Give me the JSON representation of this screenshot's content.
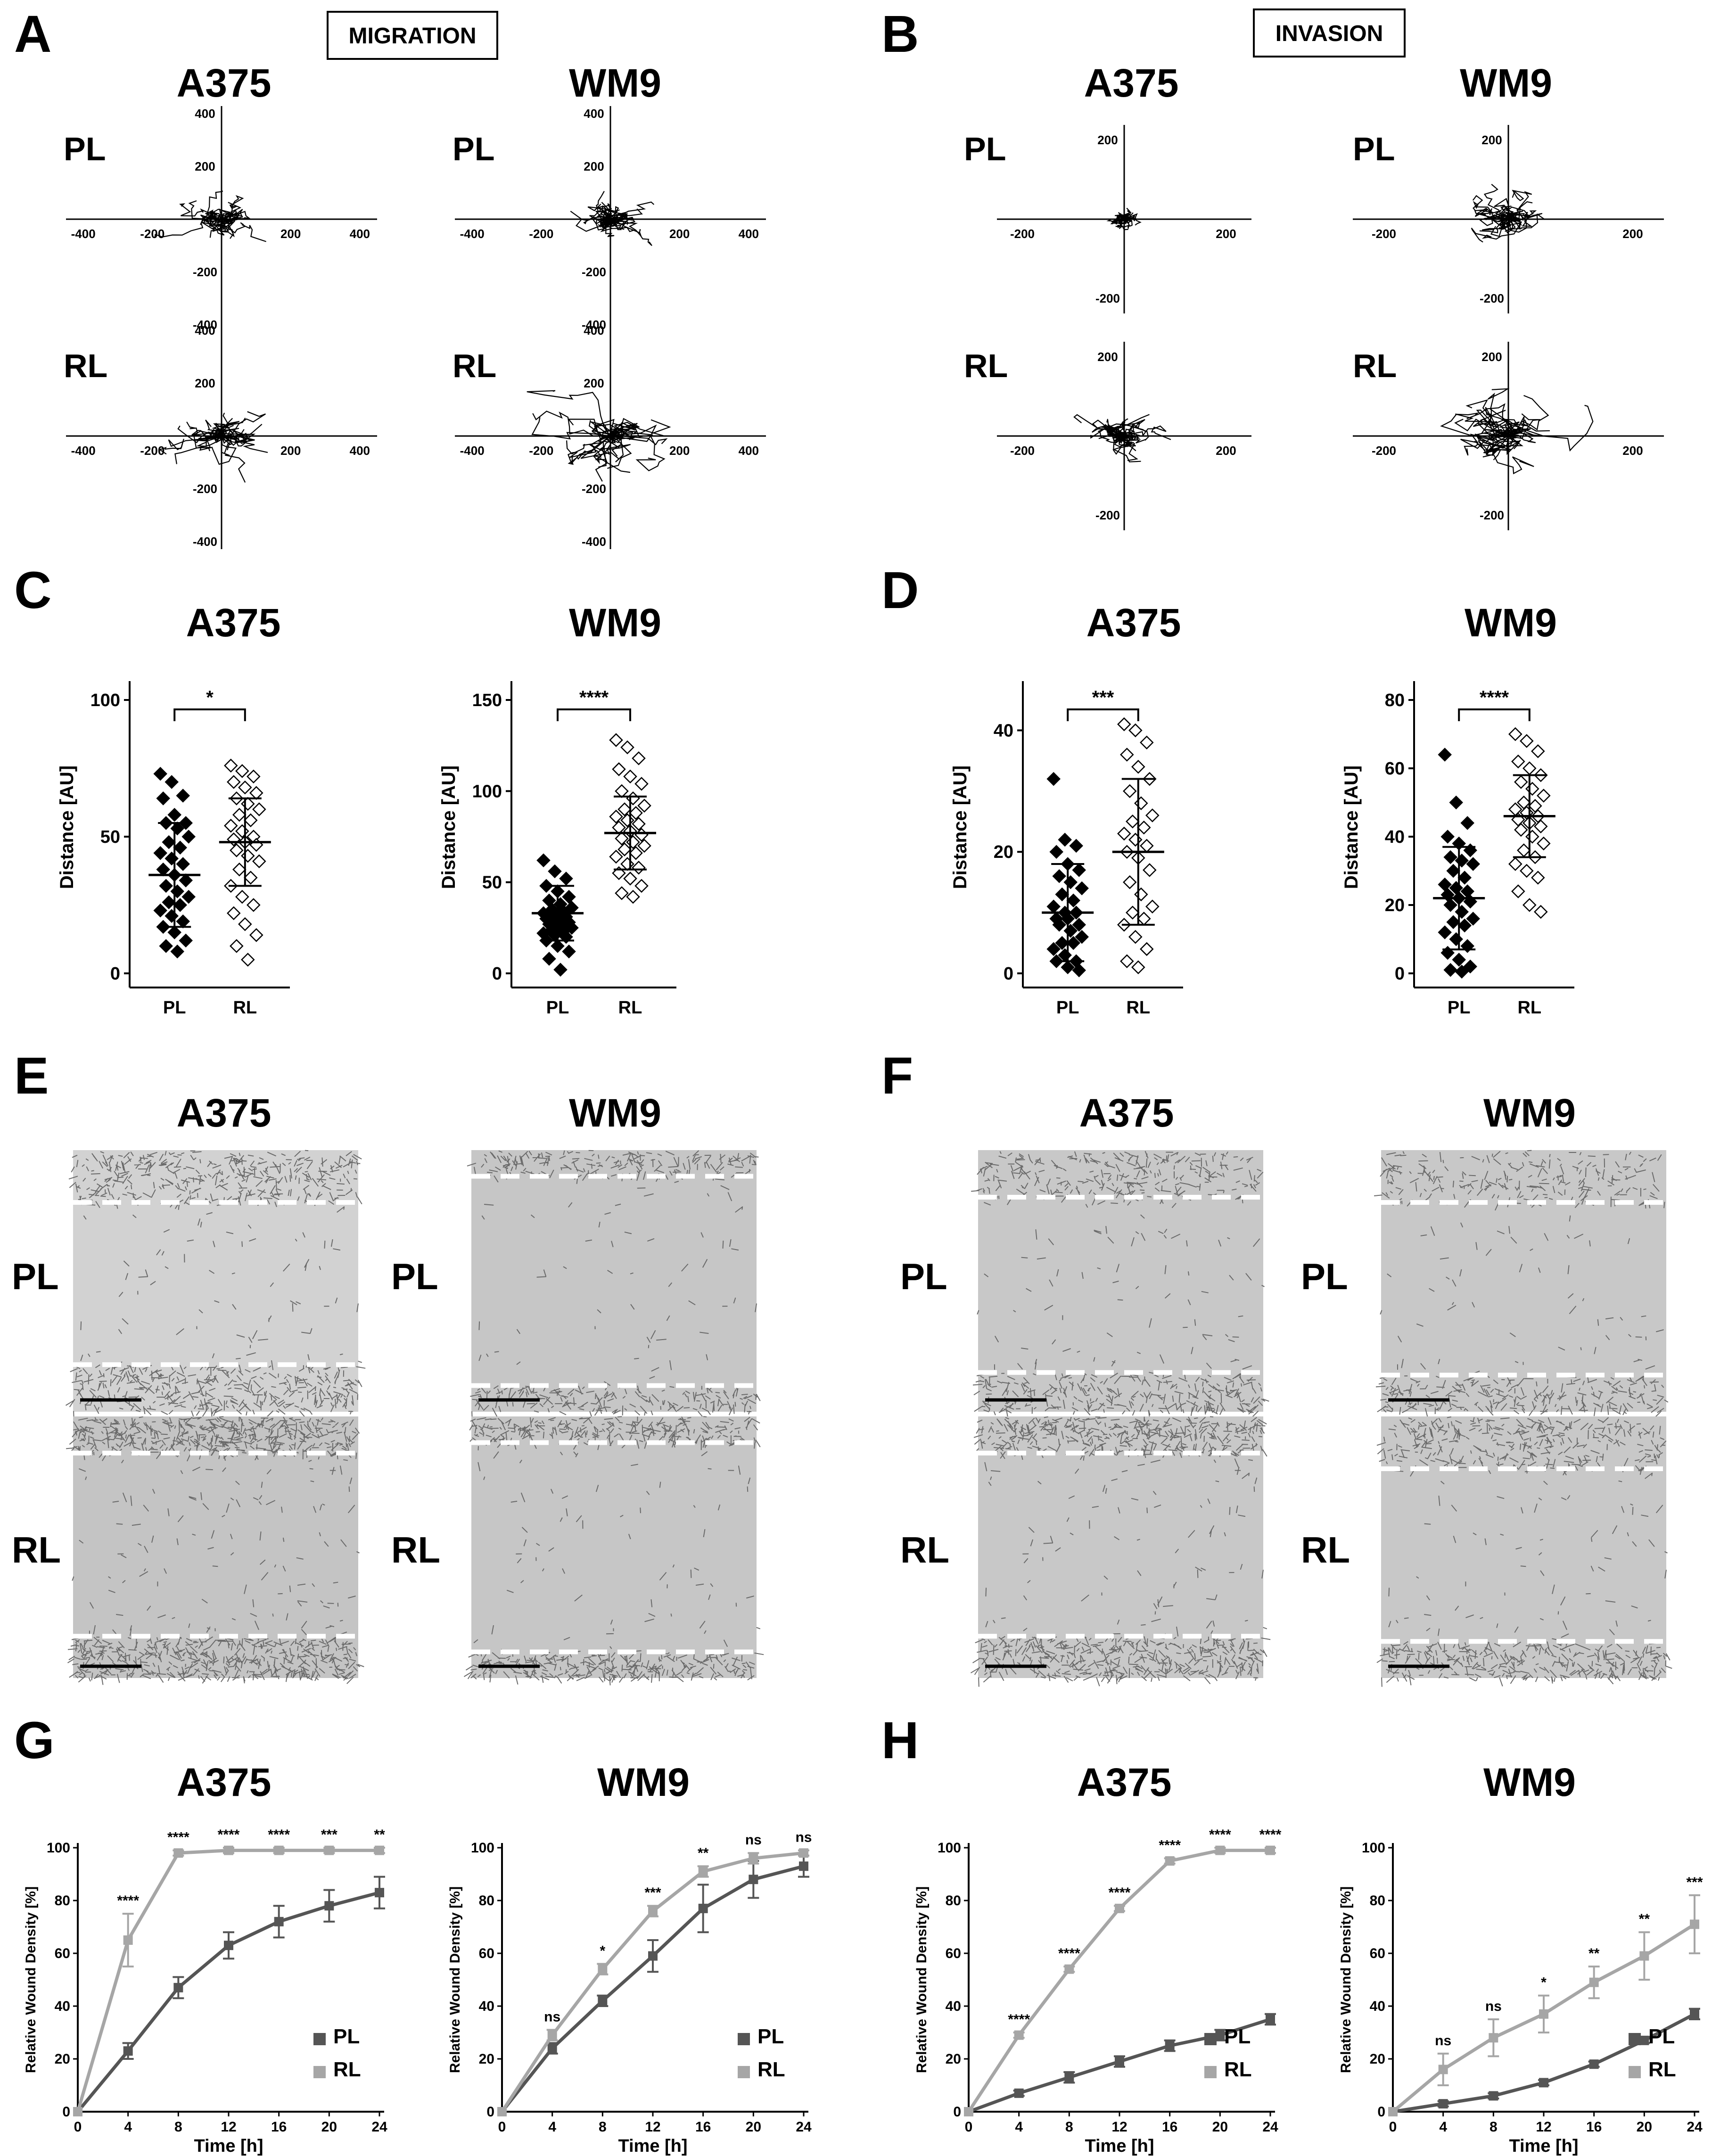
{
  "colors": {
    "pl": "#555555",
    "rl": "#a6a6a6",
    "micro_bg": "#c4c4c4",
    "dash": "#ffffff"
  },
  "figure": {
    "panels": {
      "A": {
        "letter": "A",
        "box_label": "MIGRATION"
      },
      "B": {
        "letter": "B",
        "box_label": "INVASION"
      },
      "C": {
        "letter": "C"
      },
      "D": {
        "letter": "D"
      },
      "E": {
        "letter": "E"
      },
      "F": {
        "letter": "F"
      },
      "G": {
        "letter": "G"
      },
      "H": {
        "letter": "H"
      }
    },
    "cells": {
      "a375": "A375",
      "wm9": "WM9"
    },
    "rows": {
      "pl": "PL",
      "rl": "RL"
    }
  },
  "chart_data": [
    {
      "panel": "A",
      "type": "trajectory",
      "title": "A375 / WM9 migration",
      "axis_ticks": [
        "-400",
        "-200",
        "200",
        "400"
      ],
      "y_ticks": [
        "400",
        "200",
        "-200",
        "-400"
      ],
      "range": [
        -450,
        450
      ]
    },
    {
      "panel": "B",
      "type": "trajectory",
      "title": "A375 / WM9 invasion",
      "axis_ticks": [
        "-200",
        "200"
      ],
      "y_ticks": [
        "200",
        "-200"
      ],
      "range": [
        -250,
        250
      ]
    },
    {
      "panel": "C",
      "cell": "A375",
      "type": "scatter",
      "ylabel": "Distance [AU]",
      "categories": [
        "PL",
        "RL"
      ],
      "ylim": [
        0,
        100
      ],
      "yticks": [
        "0",
        "50",
        "100"
      ],
      "mean": [
        36,
        48
      ],
      "sd": [
        19,
        16
      ],
      "significance": "*",
      "points": {
        "PL": [
          73,
          70,
          65,
          64,
          58,
          55,
          55,
          53,
          50,
          48,
          46,
          44,
          42,
          40,
          38,
          36,
          34,
          32,
          30,
          28,
          26,
          25,
          23,
          21,
          19,
          17,
          15,
          12,
          10,
          8
        ],
        "RL": [
          76,
          74,
          72,
          70,
          68,
          66,
          64,
          62,
          60,
          58,
          56,
          54,
          52,
          50,
          49,
          48,
          47,
          45,
          43,
          41,
          38,
          35,
          32,
          28,
          25,
          22,
          18,
          14,
          10,
          5
        ]
      }
    },
    {
      "panel": "C",
      "cell": "WM9",
      "type": "scatter",
      "ylabel": "Distance [AU]",
      "categories": [
        "PL",
        "RL"
      ],
      "ylim": [
        0,
        150
      ],
      "yticks": [
        "0",
        "50",
        "100",
        "150"
      ],
      "mean": [
        33,
        77
      ],
      "sd": [
        15,
        20
      ],
      "significance": "****",
      "points": {
        "PL": [
          62,
          56,
          52,
          48,
          45,
          42,
          40,
          38,
          36,
          35,
          34,
          33,
          32,
          31,
          30,
          29,
          28,
          27,
          26,
          25,
          24,
          23,
          22,
          21,
          20,
          18,
          15,
          12,
          8,
          2
        ],
        "RL": [
          128,
          124,
          118,
          112,
          108,
          104,
          100,
          96,
          92,
          90,
          88,
          86,
          84,
          82,
          80,
          78,
          76,
          74,
          72,
          70,
          68,
          66,
          64,
          60,
          58,
          55,
          52,
          48,
          44,
          42
        ]
      }
    },
    {
      "panel": "D",
      "cell": "A375",
      "type": "scatter",
      "ylabel": "Distance [AU]",
      "categories": [
        "PL",
        "RL"
      ],
      "ylim": [
        0,
        45
      ],
      "yticks": [
        "0",
        "20",
        "40"
      ],
      "mean": [
        10,
        20
      ],
      "sd": [
        8,
        12
      ],
      "significance": "***",
      "points": {
        "PL": [
          32,
          22,
          21,
          20,
          18,
          17,
          16,
          15,
          14,
          13,
          12,
          11,
          10,
          10,
          9,
          9,
          8,
          8,
          7,
          6,
          5,
          5,
          4,
          3,
          2,
          2,
          1,
          0.5
        ],
        "RL": [
          41,
          40,
          38,
          36,
          34,
          32,
          30,
          28,
          26,
          25,
          24,
          23,
          22,
          21,
          20,
          19,
          17,
          15,
          13,
          11,
          10,
          9,
          8,
          6,
          4,
          2,
          1
        ]
      }
    },
    {
      "panel": "D",
      "cell": "WM9",
      "type": "scatter",
      "ylabel": "Distance [AU]",
      "categories": [
        "PL",
        "RL"
      ],
      "ylim": [
        0,
        80
      ],
      "yticks": [
        "0",
        "20",
        "40",
        "60",
        "80"
      ],
      "mean": [
        22,
        46
      ],
      "sd": [
        15,
        12
      ],
      "significance": "****",
      "points": {
        "PL": [
          64,
          50,
          44,
          40,
          38,
          36,
          34,
          33,
          32,
          30,
          28,
          26,
          25,
          24,
          23,
          22,
          21,
          20,
          18,
          16,
          15,
          14,
          12,
          10,
          8,
          6,
          4,
          2,
          1,
          0.5
        ],
        "RL": [
          70,
          68,
          65,
          62,
          60,
          58,
          56,
          54,
          52,
          50,
          49,
          48,
          47,
          46,
          45,
          44,
          43,
          42,
          40,
          38,
          36,
          34,
          32,
          30,
          28,
          24,
          20,
          18
        ]
      }
    },
    {
      "panel": "E",
      "type": "micrograph_grid",
      "description": "A375/WM9 wound images PL/RL migration"
    },
    {
      "panel": "F",
      "type": "micrograph_grid",
      "description": "A375/WM9 wound images PL/RL invasion"
    },
    {
      "panel": "G",
      "cell": "A375",
      "type": "line",
      "xlabel": "Time [h]",
      "ylabel": "Relative Wound Density [%]",
      "x": [
        0,
        4,
        8,
        12,
        16,
        20,
        24
      ],
      "ylim": [
        0,
        100
      ],
      "yticks": [
        "0",
        "20",
        "40",
        "60",
        "80",
        "100"
      ],
      "xticks": [
        "0",
        "4",
        "8",
        "12",
        "16",
        "20",
        "24"
      ],
      "series": [
        {
          "name": "PL",
          "values": [
            0,
            23,
            47,
            63,
            72,
            78,
            83
          ],
          "err": [
            0,
            3,
            4,
            5,
            6,
            6,
            6
          ]
        },
        {
          "name": "RL",
          "values": [
            0,
            65,
            98,
            99,
            99,
            99,
            99
          ],
          "err": [
            0,
            10,
            1,
            1,
            1,
            1,
            1
          ]
        }
      ],
      "significance": [
        "",
        "****",
        "****",
        "****",
        "****",
        "***",
        "**"
      ]
    },
    {
      "panel": "G",
      "cell": "WM9",
      "type": "line",
      "xlabel": "Time [h]",
      "ylabel": "Relative Wound Density [%]",
      "x": [
        0,
        4,
        8,
        12,
        16,
        20,
        24
      ],
      "ylim": [
        0,
        100
      ],
      "yticks": [
        "0",
        "20",
        "40",
        "60",
        "80",
        "100"
      ],
      "xticks": [
        "0",
        "4",
        "8",
        "12",
        "16",
        "20",
        "24"
      ],
      "series": [
        {
          "name": "PL",
          "values": [
            0,
            24,
            42,
            59,
            77,
            88,
            93
          ],
          "err": [
            0,
            2,
            2,
            6,
            9,
            7,
            4
          ]
        },
        {
          "name": "RL",
          "values": [
            0,
            29,
            54,
            76,
            91,
            96,
            98
          ],
          "err": [
            0,
            2,
            2,
            2,
            2,
            2,
            1
          ]
        }
      ],
      "significance": [
        "",
        "ns",
        "*",
        "***",
        "**",
        "ns",
        "ns"
      ]
    },
    {
      "panel": "H",
      "cell": "A375",
      "type": "line",
      "xlabel": "Time [h]",
      "ylabel": "Relative Wound Density [%]",
      "x": [
        0,
        4,
        8,
        12,
        16,
        20,
        24
      ],
      "ylim": [
        0,
        100
      ],
      "yticks": [
        "0",
        "20",
        "40",
        "60",
        "80",
        "100"
      ],
      "xticks": [
        "0",
        "4",
        "8",
        "12",
        "16",
        "20",
        "24"
      ],
      "series": [
        {
          "name": "PL",
          "values": [
            0,
            7,
            13,
            19,
            25,
            29,
            35
          ],
          "err": [
            0,
            1,
            2,
            2,
            2,
            2,
            2
          ]
        },
        {
          "name": "RL",
          "values": [
            0,
            29,
            54,
            77,
            95,
            99,
            99
          ],
          "err": [
            0,
            1,
            1,
            1,
            1,
            1,
            1
          ]
        }
      ],
      "significance": [
        "",
        "****",
        "****",
        "****",
        "****",
        "****",
        "****"
      ]
    },
    {
      "panel": "H",
      "cell": "WM9",
      "type": "line",
      "xlabel": "Time [h]",
      "ylabel": "Relative Wound Density [%]",
      "x": [
        0,
        4,
        8,
        12,
        16,
        20,
        24
      ],
      "ylim": [
        0,
        100
      ],
      "yticks": [
        "0",
        "20",
        "40",
        "60",
        "80",
        "100"
      ],
      "xticks": [
        "0",
        "4",
        "8",
        "12",
        "16",
        "20",
        "24"
      ],
      "series": [
        {
          "name": "PL",
          "values": [
            0,
            3,
            6,
            11,
            18,
            27,
            37
          ],
          "err": [
            0,
            1,
            1,
            1,
            1,
            1,
            2
          ]
        },
        {
          "name": "RL",
          "values": [
            0,
            16,
            28,
            37,
            49,
            59,
            71
          ],
          "err": [
            0,
            6,
            7,
            7,
            6,
            9,
            11
          ]
        }
      ],
      "significance": [
        "",
        "ns",
        "ns",
        "*",
        "**",
        "**",
        "***"
      ]
    }
  ]
}
